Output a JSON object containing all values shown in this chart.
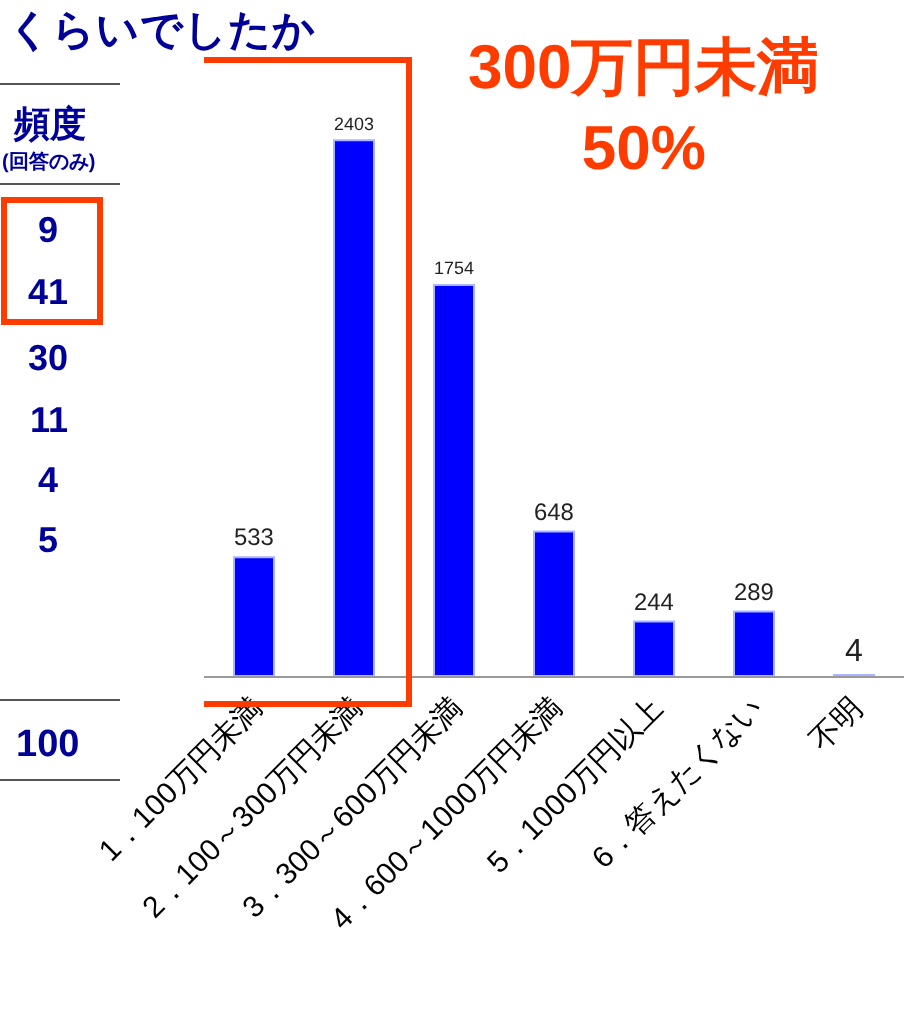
{
  "chart_data": [
    {
      "type": "other",
      "title": "くらいでしたか",
      "annotations": [
        "頻度",
        "(回答のみ)",
        "9",
        "41",
        "30",
        "11",
        "4",
        "5",
        "100"
      ]
    },
    {
      "type": "bar",
      "categories": [
        "1．100万円未満",
        "2．100～300万円未満",
        "3．300～600万円未満",
        "4．600～1000万円未満",
        "5．1000万円以上",
        "6．答えたくない",
        "不明"
      ],
      "values": [
        533,
        2403,
        1754,
        648,
        244,
        289,
        4
      ],
      "color": "#0000ff",
      "data_labels": true,
      "annotations": [
        "300万円未満\n50%"
      ]
    }
  ]
}
